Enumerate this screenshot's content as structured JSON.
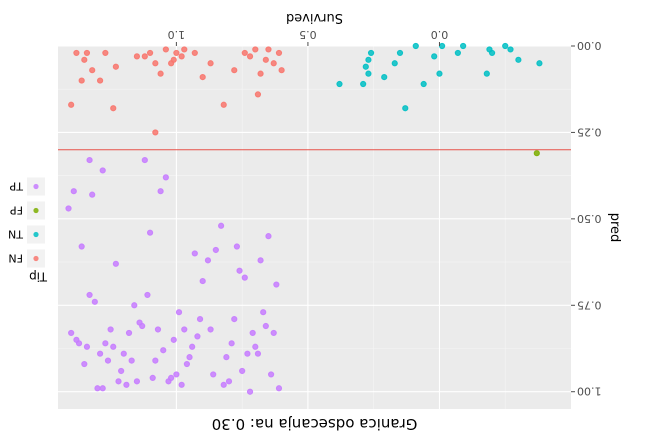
{
  "chart_data": {
    "type": "scatter",
    "title": "Granica odsecanja na: 0.30",
    "xlabel": "Survived",
    "ylabel": "pred",
    "xlim": [
      -0.5,
      1.45
    ],
    "ylim": [
      0,
      1.05
    ],
    "x_ticks": [
      {
        "value": 0.0,
        "label": "0.0"
      },
      {
        "value": 0.5,
        "label": "0.5"
      },
      {
        "value": 1.0,
        "label": "1.0"
      }
    ],
    "y_ticks": [
      {
        "value": 0.0,
        "label": "0.00"
      },
      {
        "value": 0.25,
        "label": "0.25"
      },
      {
        "value": 0.5,
        "label": "0.50"
      },
      {
        "value": 0.75,
        "label": "0.75"
      },
      {
        "value": 1.0,
        "label": "1.00"
      }
    ],
    "cutoff": 0.3,
    "legend": {
      "title": "Tip",
      "position": "right"
    },
    "series": [
      {
        "name": "FN",
        "color": "#F8766D",
        "points": [
          [
            0.6,
            0.07
          ],
          [
            0.61,
            0.02
          ],
          [
            0.63,
            0.05
          ],
          [
            0.65,
            0.01
          ],
          [
            0.66,
            0.04
          ],
          [
            0.68,
            0.08
          ],
          [
            0.69,
            0.14
          ],
          [
            0.7,
            0.01
          ],
          [
            0.72,
            0.03
          ],
          [
            0.74,
            0.02
          ],
          [
            0.78,
            0.07
          ],
          [
            0.82,
            0.17
          ],
          [
            0.87,
            0.05
          ],
          [
            0.9,
            0.09
          ],
          [
            0.93,
            0.02
          ],
          [
            0.97,
            0.01
          ],
          [
            0.98,
            0.03
          ],
          [
            1.0,
            0.02
          ],
          [
            1.01,
            0.04
          ],
          [
            1.02,
            0.05
          ],
          [
            1.04,
            0.01
          ],
          [
            1.06,
            0.08
          ],
          [
            1.08,
            0.05
          ],
          [
            1.1,
            0.02
          ],
          [
            1.12,
            0.03
          ],
          [
            1.15,
            0.03
          ],
          [
            1.08,
            0.25
          ],
          [
            1.23,
            0.06
          ],
          [
            1.24,
            0.18
          ],
          [
            1.27,
            0.02
          ],
          [
            1.29,
            0.1
          ],
          [
            1.32,
            0.07
          ],
          [
            1.34,
            0.02
          ],
          [
            1.35,
            0.04
          ],
          [
            1.36,
            0.1
          ],
          [
            1.38,
            0.02
          ],
          [
            1.4,
            0.17
          ]
        ]
      },
      {
        "name": "TN",
        "color": "#00BFC4",
        "points": [
          [
            -0.38,
            0.05
          ],
          [
            -0.3,
            0.04
          ],
          [
            -0.27,
            0.01
          ],
          [
            -0.25,
            0.0
          ],
          [
            -0.2,
            0.02
          ],
          [
            -0.19,
            0.01
          ],
          [
            -0.18,
            0.08
          ],
          [
            -0.09,
            0.0
          ],
          [
            -0.07,
            0.02
          ],
          [
            -0.01,
            0.0
          ],
          [
            0.0,
            0.08
          ],
          [
            0.02,
            0.03
          ],
          [
            0.06,
            0.11
          ],
          [
            0.09,
            0.0
          ],
          [
            0.13,
            0.18
          ],
          [
            0.15,
            0.02
          ],
          [
            0.17,
            0.05
          ],
          [
            0.21,
            0.09
          ],
          [
            0.26,
            0.02
          ],
          [
            0.27,
            0.04
          ],
          [
            0.28,
            0.06
          ],
          [
            0.29,
            0.11
          ],
          [
            0.38,
            0.11
          ],
          [
            0.27,
            0.08
          ]
        ]
      },
      {
        "name": "FP",
        "color": "#7CAE00",
        "points": [
          [
            -0.37,
            0.31
          ]
        ]
      },
      {
        "name": "TP",
        "color": "#C77CFF",
        "points": [
          [
            0.61,
            0.99
          ],
          [
            0.62,
            0.69
          ],
          [
            0.63,
            0.83
          ],
          [
            0.64,
            0.95
          ],
          [
            0.65,
            0.55
          ],
          [
            0.66,
            0.81
          ],
          [
            0.67,
            0.77
          ],
          [
            0.68,
            0.62
          ],
          [
            0.69,
            0.89
          ],
          [
            0.7,
            0.87
          ],
          [
            0.71,
            0.83
          ],
          [
            0.72,
            1.0
          ],
          [
            0.73,
            0.89
          ],
          [
            0.74,
            0.67
          ],
          [
            0.75,
            0.94
          ],
          [
            0.76,
            0.65
          ],
          [
            0.77,
            0.58
          ],
          [
            0.78,
            0.79
          ],
          [
            0.79,
            0.86
          ],
          [
            0.8,
            0.97
          ],
          [
            0.81,
            0.9
          ],
          [
            0.82,
            0.98
          ],
          [
            0.83,
            0.52
          ],
          [
            0.85,
            0.59
          ],
          [
            0.86,
            0.95
          ],
          [
            0.87,
            0.82
          ],
          [
            0.88,
            0.62
          ],
          [
            0.9,
            0.68
          ],
          [
            0.91,
            0.79
          ],
          [
            0.92,
            0.84
          ],
          [
            0.93,
            0.6
          ],
          [
            0.94,
            0.87
          ],
          [
            0.95,
            0.9
          ],
          [
            0.96,
            0.92
          ],
          [
            0.97,
            0.82
          ],
          [
            0.98,
            0.98
          ],
          [
            0.99,
            0.77
          ],
          [
            1.0,
            0.95
          ],
          [
            1.01,
            0.85
          ],
          [
            1.02,
            0.96
          ],
          [
            1.03,
            0.97
          ],
          [
            1.04,
            0.38
          ],
          [
            1.05,
            0.88
          ],
          [
            1.06,
            0.42
          ],
          [
            1.07,
            0.82
          ],
          [
            1.08,
            0.91
          ],
          [
            1.09,
            0.96
          ],
          [
            1.1,
            0.54
          ],
          [
            1.11,
            0.72
          ],
          [
            1.12,
            0.33
          ],
          [
            1.13,
            0.81
          ],
          [
            1.14,
            0.8
          ],
          [
            1.15,
            0.97
          ],
          [
            1.16,
            0.75
          ],
          [
            1.17,
            0.91
          ],
          [
            1.18,
            0.83
          ],
          [
            1.19,
            0.98
          ],
          [
            1.2,
            0.89
          ],
          [
            1.21,
            0.94
          ],
          [
            1.22,
            0.97
          ],
          [
            1.23,
            0.63
          ],
          [
            1.24,
            0.87
          ],
          [
            1.25,
            0.82
          ],
          [
            1.26,
            0.91
          ],
          [
            1.27,
            0.86
          ],
          [
            1.28,
            0.36
          ],
          [
            1.29,
            0.89
          ],
          [
            1.3,
            0.99
          ],
          [
            1.31,
            0.74
          ],
          [
            1.32,
            0.43
          ],
          [
            1.33,
            0.33
          ],
          [
            1.34,
            0.87
          ],
          [
            1.35,
            0.92
          ],
          [
            1.36,
            0.58
          ],
          [
            1.37,
            0.86
          ],
          [
            1.38,
            0.85
          ],
          [
            1.39,
            0.42
          ],
          [
            1.4,
            0.83
          ],
          [
            1.41,
            0.47
          ],
          [
            1.33,
            0.72
          ],
          [
            1.28,
            0.99
          ]
        ]
      }
    ]
  }
}
